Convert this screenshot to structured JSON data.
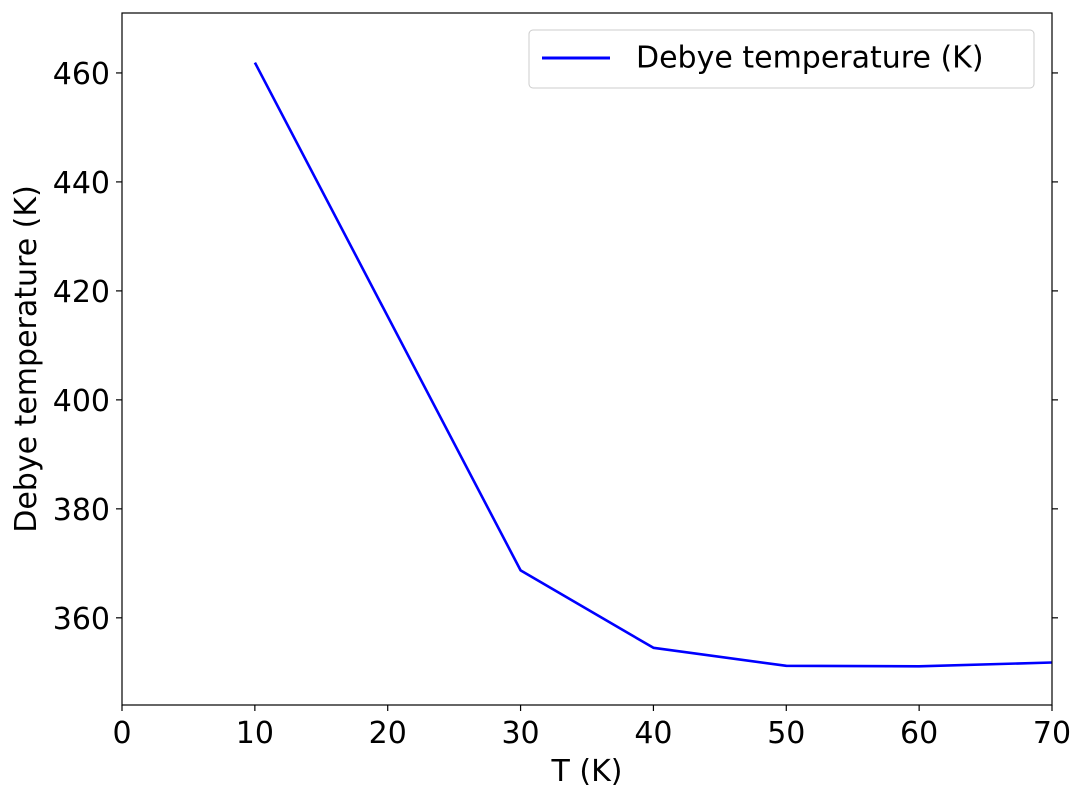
{
  "chart_data": {
    "type": "line",
    "xlabel": "T (K)",
    "ylabel": "Debye temperature (K)",
    "xlim": [
      0,
      70
    ],
    "ylim": [
      344,
      471
    ],
    "xticks": [
      0,
      10,
      20,
      30,
      40,
      50,
      60,
      70
    ],
    "yticks": [
      360,
      380,
      400,
      420,
      440,
      460
    ],
    "grid": false,
    "legend_position": "top-right",
    "series": [
      {
        "name": "Debye temperature (K)",
        "color": "#0000ff",
        "x": [
          10,
          30,
          40,
          50,
          60,
          70
        ],
        "y": [
          461.9,
          368.7,
          354.5,
          351.2,
          351.1,
          351.8
        ]
      }
    ]
  }
}
